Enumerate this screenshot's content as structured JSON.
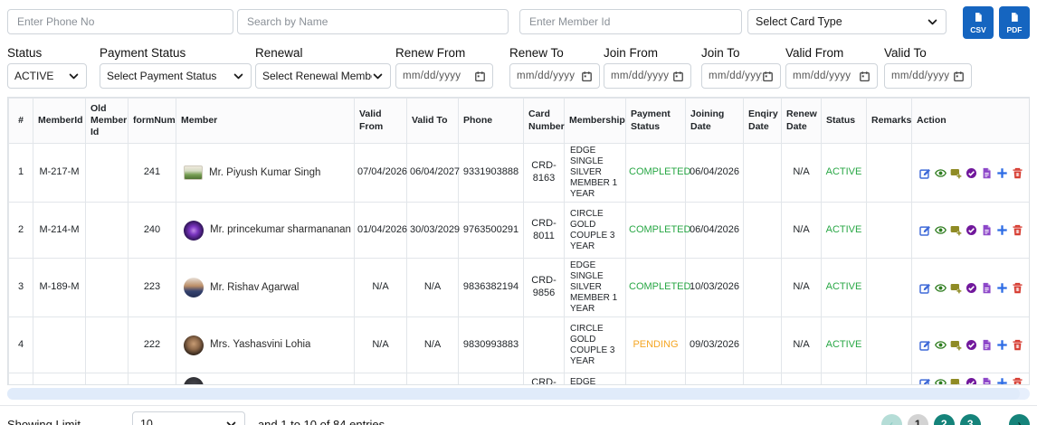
{
  "top_bar": {
    "phone_input": {
      "placeholder": "Enter Phone No",
      "value": ""
    },
    "name_input": {
      "placeholder": "Search by Name",
      "value": ""
    },
    "member_id_input": {
      "placeholder": "Enter Member Id",
      "value": ""
    },
    "card_type_select": {
      "value": "Select Card Type"
    },
    "csv_button": "CSV",
    "pdf_button": "PDF"
  },
  "filter_bar": {
    "filters": [
      {
        "id": "status",
        "label": "Status",
        "type": "select",
        "value": "ACTIVE"
      },
      {
        "id": "payment-status",
        "label": "Payment Status",
        "type": "select",
        "value": "Select Payment Status"
      },
      {
        "id": "renewal",
        "label": "Renewal",
        "type": "select",
        "value": "Select Renewal Members"
      },
      {
        "id": "renew-from",
        "label": "Renew From",
        "type": "date",
        "value": "mm/dd/yyyy"
      },
      {
        "id": "renew-to",
        "label": "Renew To",
        "type": "date",
        "value": "mm/dd/yyyy"
      },
      {
        "id": "join-from",
        "label": "Join From",
        "type": "date",
        "value": "mm/dd/yyyy"
      },
      {
        "id": "join-to",
        "label": "Join To",
        "type": "date",
        "value": "mm/dd/yyyy"
      },
      {
        "id": "valid-from",
        "label": "Valid From",
        "type": "date",
        "value": "mm/dd/yyyy"
      },
      {
        "id": "valid-to",
        "label": "Valid To",
        "type": "date",
        "value": "mm/dd/yyyy"
      }
    ]
  },
  "table": {
    "headers": [
      "#",
      "MemberId",
      "Old Member Id",
      "formNum",
      "Member",
      "Valid From",
      "Valid To",
      "Phone",
      "Card Number",
      "Membership",
      "Payment Status",
      "Joining Date",
      "Enqiry Date",
      "Renew Date",
      "Status",
      "Remarks",
      "Action"
    ],
    "action_icons": [
      {
        "name": "edit-icon",
        "color": "#3f6ad8"
      },
      {
        "name": "view-icon",
        "color": "#2e7d1f"
      },
      {
        "name": "card-add-icon",
        "color": "#8f8b25"
      },
      {
        "name": "approve-icon",
        "color": "#71189c"
      },
      {
        "name": "invoice-icon",
        "color": "#8d47c9"
      },
      {
        "name": "add-icon",
        "color": "#2d6ce5"
      },
      {
        "name": "delete-icon",
        "color": "#d63a2f"
      }
    ],
    "rows": [
      {
        "num": "1",
        "member_id": "M-217-M",
        "old_member_id": "",
        "form_num": "241",
        "avatar": "thumb-green",
        "member": "Mr. Piyush Kumar Singh",
        "valid_from": "07/04/2026",
        "valid_to": "06/04/2027",
        "phone": "9331903888",
        "card": "CRD-8163",
        "membership": "EDGE SINGLE SILVER MEMBER 1 YEAR",
        "payment_status": "COMPLETED",
        "joining_date": "06/04/2026",
        "enqiry_date": "",
        "renew_date": "N/A",
        "status": "ACTIVE",
        "remarks": ""
      },
      {
        "num": "2",
        "member_id": "M-214-M",
        "old_member_id": "",
        "form_num": "240",
        "avatar": "circle-purple",
        "member": "Mr. princekumar sharmananand prasad",
        "valid_from": "01/04/2026",
        "valid_to": "30/03/2029",
        "phone": "9763500291",
        "card": "CRD-8011",
        "membership": "CIRCLE GOLD COUPLE 3 YEAR",
        "payment_status": "COMPLETED",
        "joining_date": "06/04/2026",
        "enqiry_date": "",
        "renew_date": "N/A",
        "status": "ACTIVE",
        "remarks": ""
      },
      {
        "num": "3",
        "member_id": "M-189-M",
        "old_member_id": "",
        "form_num": "223",
        "avatar": "photo-male",
        "member": "Mr. Rishav  Agarwal",
        "valid_from": "N/A",
        "valid_to": "N/A",
        "phone": "9836382194",
        "card": "CRD-9856",
        "membership": "EDGE SINGLE SILVER MEMBER 1 YEAR",
        "payment_status": "COMPLETED",
        "joining_date": "10/03/2026",
        "enqiry_date": "",
        "renew_date": "N/A",
        "status": "ACTIVE",
        "remarks": ""
      },
      {
        "num": "4",
        "member_id": "",
        "old_member_id": "",
        "form_num": "222",
        "avatar": "photo-female",
        "member": "Mrs. Yashasvini  Lohia",
        "valid_from": "N/A",
        "valid_to": "N/A",
        "phone": "9830993883",
        "card": "",
        "membership": "CIRCLE GOLD COUPLE 3 YEAR",
        "payment_status": "PENDING",
        "joining_date": "09/03/2026",
        "enqiry_date": "",
        "renew_date": "N/A",
        "status": "ACTIVE",
        "remarks": ""
      },
      {
        "num": "",
        "member_id": "",
        "old_member_id": "",
        "form_num": "",
        "avatar": "circle-dark",
        "member": "",
        "valid_from": "",
        "valid_to": "",
        "phone": "",
        "card": "CRD-",
        "membership": "EDGE SILVER",
        "payment_status": "",
        "joining_date": "",
        "enqiry_date": "",
        "renew_date": "",
        "status": "",
        "remarks": "",
        "partial": true
      }
    ]
  },
  "footer": {
    "showing_limit_label": "Showing Limit",
    "limit_value": "10",
    "entries_text": "and 1 to 10 of 84 entries",
    "pagination": {
      "prev": "‹",
      "pages": [
        "1",
        "2",
        "3"
      ],
      "current_page": "1",
      "ellipsis": "....",
      "next": "›"
    }
  },
  "colors": {
    "export_button_blue": "#1565c0",
    "pager_teal": "#15837a",
    "status_completed_green": "#28a745",
    "status_pending_orange": "#f5a623",
    "status_active_green": "#28a745"
  }
}
